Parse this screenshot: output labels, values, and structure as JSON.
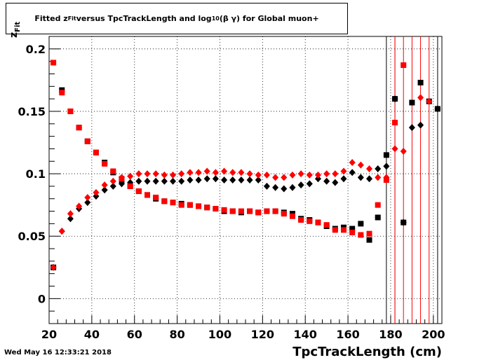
{
  "title": {
    "prefix": "Fitted  z",
    "sub": "Fit",
    "middle": "  versus TpcTrackLength and log",
    "log_sub": "10",
    "suffix": " (β γ) for Global muon+"
  },
  "footer_date": "Wed May 16 12:33:21 2018",
  "xlabel_text": "TpcTrackLength (cm)",
  "ylabel_main": "z",
  "ylabel_sub": "Fit",
  "colors": {
    "black": "#000000",
    "red": "#ff0000"
  },
  "chart_data": {
    "type": "scatter",
    "title": "Fitted z_Fit versus TpcTrackLength and log_10 (β γ) for Global muon+",
    "xlabel": "TpcTrackLength (cm)",
    "ylabel": "z_Fit",
    "xlim": [
      20,
      204
    ],
    "ylim": [
      -0.02,
      0.21
    ],
    "x_ticks": [
      20,
      40,
      60,
      80,
      100,
      120,
      140,
      160,
      180,
      200
    ],
    "x_tick_labels": [
      "20",
      "40",
      "60",
      "80",
      "100",
      "120",
      "140",
      "160",
      "180",
      "200"
    ],
    "y_ticks": [
      0,
      0.05,
      0.1,
      0.15,
      0.2
    ],
    "y_tick_labels": [
      "0",
      "0.05",
      "0.1",
      "0.15",
      "0.2"
    ],
    "grid": true,
    "series": [
      {
        "marker": "square",
        "color": "#000000",
        "points": [
          [
            22,
            0.025
          ],
          [
            26,
            0.167
          ],
          [
            30,
            0.15
          ],
          [
            34,
            0.137
          ],
          [
            38,
            0.126
          ],
          [
            42,
            0.117
          ],
          [
            46,
            0.109
          ],
          [
            50,
            0.101
          ],
          [
            54,
            0.095
          ],
          [
            58,
            0.09
          ],
          [
            62,
            0.086
          ],
          [
            66,
            0.083
          ],
          [
            70,
            0.08
          ],
          [
            74,
            0.078
          ],
          [
            78,
            0.077
          ],
          [
            82,
            0.076
          ],
          [
            86,
            0.075
          ],
          [
            90,
            0.074
          ],
          [
            94,
            0.073
          ],
          [
            98,
            0.072
          ],
          [
            102,
            0.07
          ],
          [
            106,
            0.07
          ],
          [
            110,
            0.069
          ],
          [
            114,
            0.07
          ],
          [
            118,
            0.069
          ],
          [
            122,
            0.07
          ],
          [
            126,
            0.07
          ],
          [
            130,
            0.069
          ],
          [
            134,
            0.068
          ],
          [
            138,
            0.064
          ],
          [
            142,
            0.063
          ],
          [
            146,
            0.061
          ],
          [
            150,
            0.058
          ],
          [
            154,
            0.056
          ],
          [
            158,
            0.057
          ],
          [
            162,
            0.056
          ],
          [
            166,
            0.06
          ],
          [
            170,
            0.047
          ],
          [
            174,
            0.065
          ],
          [
            178,
            0.115
          ],
          [
            182,
            0.16
          ],
          [
            186,
            0.061
          ],
          [
            190,
            0.157
          ],
          [
            194,
            0.173
          ],
          [
            198,
            0.158
          ],
          [
            202,
            0.152
          ]
        ]
      },
      {
        "marker": "diamond",
        "color": "#000000",
        "points": [
          [
            22,
            0.025
          ],
          [
            26,
            0.054
          ],
          [
            30,
            0.064
          ],
          [
            34,
            0.072
          ],
          [
            38,
            0.077
          ],
          [
            42,
            0.082
          ],
          [
            46,
            0.087
          ],
          [
            50,
            0.09
          ],
          [
            54,
            0.092
          ],
          [
            58,
            0.093
          ],
          [
            62,
            0.094
          ],
          [
            66,
            0.094
          ],
          [
            70,
            0.094
          ],
          [
            74,
            0.094
          ],
          [
            78,
            0.094
          ],
          [
            82,
            0.094
          ],
          [
            86,
            0.095
          ],
          [
            90,
            0.095
          ],
          [
            94,
            0.096
          ],
          [
            98,
            0.096
          ],
          [
            102,
            0.095
          ],
          [
            106,
            0.095
          ],
          [
            110,
            0.095
          ],
          [
            114,
            0.095
          ],
          [
            118,
            0.095
          ],
          [
            122,
            0.09
          ],
          [
            126,
            0.089
          ],
          [
            130,
            0.088
          ],
          [
            134,
            0.089
          ],
          [
            138,
            0.091
          ],
          [
            142,
            0.092
          ],
          [
            146,
            0.096
          ],
          [
            150,
            0.094
          ],
          [
            154,
            0.093
          ],
          [
            158,
            0.096
          ],
          [
            162,
            0.101
          ],
          [
            166,
            0.097
          ],
          [
            170,
            0.096
          ],
          [
            174,
            0.104
          ],
          [
            178,
            0.106
          ],
          [
            182,
            0.16
          ],
          [
            186,
            0.061
          ],
          [
            190,
            0.137
          ],
          [
            194,
            0.139
          ],
          [
            198,
            0.158
          ],
          [
            202,
            0.152
          ]
        ]
      },
      {
        "marker": "square",
        "color": "#ff0000",
        "points": [
          [
            22,
            0.189
          ],
          [
            26,
            0.165
          ],
          [
            30,
            0.15
          ],
          [
            34,
            0.137
          ],
          [
            38,
            0.126
          ],
          [
            42,
            0.117
          ],
          [
            46,
            0.108
          ],
          [
            50,
            0.102
          ],
          [
            54,
            0.096
          ],
          [
            58,
            0.09
          ],
          [
            62,
            0.086
          ],
          [
            66,
            0.083
          ],
          [
            70,
            0.081
          ],
          [
            74,
            0.078
          ],
          [
            78,
            0.077
          ],
          [
            82,
            0.075
          ],
          [
            86,
            0.075
          ],
          [
            90,
            0.074
          ],
          [
            94,
            0.073
          ],
          [
            98,
            0.072
          ],
          [
            102,
            0.071
          ],
          [
            106,
            0.07
          ],
          [
            110,
            0.07
          ],
          [
            114,
            0.07
          ],
          [
            118,
            0.069
          ],
          [
            122,
            0.07
          ],
          [
            126,
            0.07
          ],
          [
            130,
            0.068
          ],
          [
            134,
            0.066
          ],
          [
            138,
            0.063
          ],
          [
            142,
            0.062
          ],
          [
            146,
            0.061
          ],
          [
            150,
            0.059
          ],
          [
            154,
            0.055
          ],
          [
            158,
            0.055
          ],
          [
            162,
            0.053
          ],
          [
            166,
            0.051
          ],
          [
            170,
            0.052
          ],
          [
            174,
            0.075
          ],
          [
            178,
            0.095
          ],
          [
            182,
            0.141
          ],
          [
            186,
            0.187
          ]
        ]
      },
      {
        "marker": "diamond",
        "color": "#ff0000",
        "points": [
          [
            22,
            0.025
          ],
          [
            26,
            0.054
          ],
          [
            30,
            0.068
          ],
          [
            34,
            0.074
          ],
          [
            38,
            0.081
          ],
          [
            42,
            0.085
          ],
          [
            46,
            0.091
          ],
          [
            50,
            0.094
          ],
          [
            54,
            0.097
          ],
          [
            58,
            0.098
          ],
          [
            62,
            0.1
          ],
          [
            66,
            0.1
          ],
          [
            70,
            0.1
          ],
          [
            74,
            0.099
          ],
          [
            78,
            0.099
          ],
          [
            82,
            0.1
          ],
          [
            86,
            0.101
          ],
          [
            90,
            0.101
          ],
          [
            94,
            0.102
          ],
          [
            98,
            0.101
          ],
          [
            102,
            0.102
          ],
          [
            106,
            0.101
          ],
          [
            110,
            0.101
          ],
          [
            114,
            0.1
          ],
          [
            118,
            0.099
          ],
          [
            122,
            0.099
          ],
          [
            126,
            0.097
          ],
          [
            130,
            0.097
          ],
          [
            134,
            0.099
          ],
          [
            138,
            0.1
          ],
          [
            142,
            0.099
          ],
          [
            146,
            0.099
          ],
          [
            150,
            0.1
          ],
          [
            154,
            0.1
          ],
          [
            158,
            0.102
          ],
          [
            162,
            0.109
          ],
          [
            166,
            0.107
          ],
          [
            170,
            0.104
          ],
          [
            174,
            0.097
          ],
          [
            178,
            0.097
          ],
          [
            182,
            0.12
          ],
          [
            186,
            0.118
          ],
          [
            194,
            0.161
          ],
          [
            198,
            0.158
          ]
        ]
      }
    ],
    "vertical_error_lines": [
      {
        "x": 178,
        "color": "#000000"
      },
      {
        "x": 182,
        "color": "#000000"
      },
      {
        "x": 182,
        "color": "#ff0000"
      },
      {
        "x": 186,
        "color": "#ff0000"
      },
      {
        "x": 190,
        "color": "#ff0000"
      },
      {
        "x": 194,
        "color": "#ff0000"
      },
      {
        "x": 198,
        "color": "#ff0000"
      },
      {
        "x": 202,
        "color": "#000000"
      }
    ]
  }
}
